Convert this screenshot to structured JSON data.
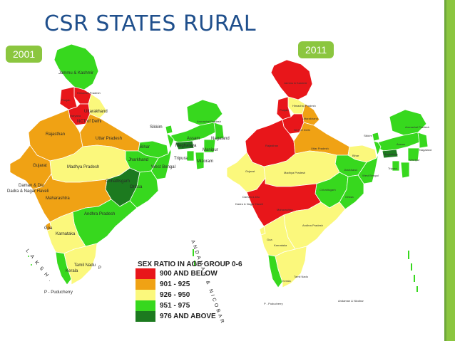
{
  "title": "CSR STATES RURAL",
  "years": {
    "left": "2001",
    "right": "2011"
  },
  "legend": {
    "title": "SEX RATIO IN AGE GROUP 0-6",
    "items": [
      {
        "label": "900 AND BELOW",
        "color": "#e8161a"
      },
      {
        "label": "901 - 925",
        "color": "#f0a214"
      },
      {
        "label": "926 - 950",
        "color": "#fbf87c"
      },
      {
        "label": "951 - 975",
        "color": "#37d81e"
      },
      {
        "label": "976 AND ABOVE",
        "color": "#1c7a1f"
      }
    ]
  },
  "map2001": {
    "labels": {
      "jk": "Jammu & Kashmir",
      "hp": "Himachal Pradesh",
      "punjab": "Punjab",
      "uttarakhand": "Uttarakhand",
      "haryana": "Haryana",
      "delhi": "NCT of Delhi",
      "rajasthan": "Rajasthan",
      "up": "Uttar Pradesh",
      "bihar": "Bihar",
      "sikkim": "Sikkim",
      "arunachal": "Arunachal Pradesh",
      "assam": "Assam",
      "nagaland": "Nagaland",
      "meghalaya": "Meghalaya",
      "manipur": "Manipur",
      "tripura": "Tripura",
      "mizoram": "Mizoram",
      "jharkhand": "Jharkhand",
      "wb": "West Bengal",
      "gujarat": "Gujarat",
      "mp": "Madhya Pradesh",
      "chhattisgarh": "Chhattisgarh",
      "orissa": "Orissa",
      "daman": "Daman & Diu",
      "dadra": "Dadra & Nagar Haveli",
      "maharashtra": "Maharashtra",
      "ap": "Andhra Pradesh",
      "goa": "Goa",
      "karnataka": "Karnataka",
      "tn": "Tamil Nadu",
      "kerala": "Kerala",
      "pud": "P - Puducherry",
      "p": "P"
    },
    "side_left": "LAKSH.",
    "side_right": "ANDAMAN & NICOBAR"
  },
  "map2011": {
    "labels": {
      "jk": "Jammu & Kashmir",
      "hp": "Himachal Pradesh",
      "punjab": "Punjab",
      "uttarakhand": "Uttarakhand",
      "delhi": "NCT of Delhi",
      "rajasthan": "Rajasthan",
      "up": "Uttar Pradesh",
      "bihar": "Bihar",
      "sikkim": "Sikkim",
      "arunachal": "Arunachal Pradesh",
      "assam": "Assam",
      "nagaland": "Nagaland",
      "meghalaya": "Meghalaya",
      "manipur": "Manipur",
      "tripura": "Tripura",
      "jharkhand": "Jharkhand",
      "wb": "West Bengal",
      "gujarat": "Gujarat",
      "mp": "Madhya Pradesh",
      "chhattisgarh": "Chhattisgarh",
      "orissa": "Orissa",
      "daman": "Daman & Diu",
      "dadra": "Dadra & Nagar Haveli",
      "maharashtra": "Maharashtra",
      "ap": "Andhra Pradesh",
      "goa": "Goa",
      "karnataka": "Karnataka",
      "tn": "Tamil Nadu",
      "kerala": "Kerala",
      "pud": "P - Puducherry",
      "andaman": "Andaman & Nicobar"
    }
  }
}
